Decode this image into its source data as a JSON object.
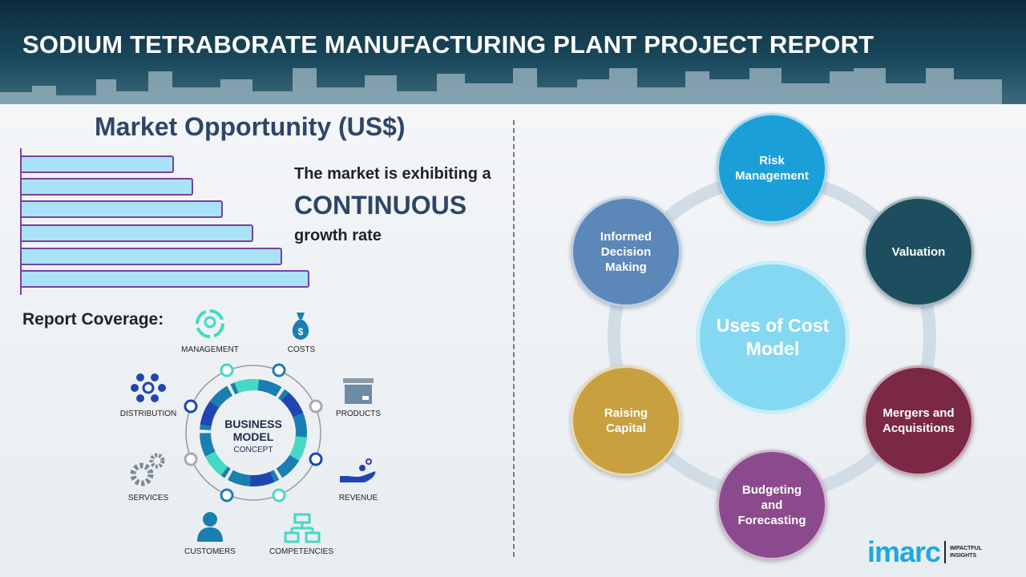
{
  "header": {
    "title": "SODIUM TETRABORATE MANUFACTURING PLANT PROJECT REPORT"
  },
  "market": {
    "title": "Market Opportunity (US$)",
    "line1": "The market is exhibiting a",
    "line2": "CONTINUOUS",
    "line3": "growth rate"
  },
  "report_coverage": {
    "title": "Report Coverage:",
    "center": {
      "line1": "BUSINESS",
      "line2": "MODEL",
      "line3": "CONCEPT"
    },
    "items": [
      "MANAGEMENT",
      "COSTS",
      "PRODUCTS",
      "REVENUE",
      "COMPETENCIES",
      "CUSTOMERS",
      "SERVICES",
      "DISTRIBUTION"
    ]
  },
  "uses": {
    "center": "Uses of Cost Model",
    "items": [
      {
        "label": "Risk Management",
        "color": "#1a9fd8"
      },
      {
        "label": "Valuation",
        "color": "#1d4e5f"
      },
      {
        "label": "Mergers and Acquisitions",
        "color": "#7a2846"
      },
      {
        "label": "Budgeting and Forecasting",
        "color": "#8c4a8e"
      },
      {
        "label": "Raising Capital",
        "color": "#c9a03f"
      },
      {
        "label": "Informed Decision Making",
        "color": "#5b87b9"
      }
    ]
  },
  "logo": {
    "word": "imarc",
    "tag1": "IMPACTFUL",
    "tag2": "INSIGHTS"
  }
}
